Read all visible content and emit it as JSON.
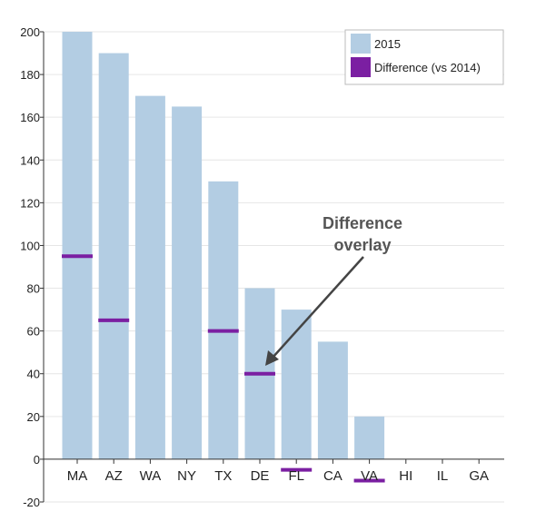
{
  "chart_data": {
    "type": "bar",
    "categories": [
      "MA",
      "AZ",
      "WA",
      "NY",
      "TX",
      "DE",
      "FL",
      "CA",
      "VA",
      "HI",
      "IL",
      "GA"
    ],
    "series": [
      {
        "name": "2015",
        "values": [
          200,
          190,
          170,
          165,
          130,
          80,
          70,
          55,
          20,
          0,
          0,
          0
        ],
        "color": "#b3cde3"
      },
      {
        "name": "Difference (vs 2014)",
        "values": [
          95,
          65,
          null,
          null,
          60,
          40,
          -5,
          null,
          -10,
          null,
          null,
          null
        ],
        "color": "#7b1fa2",
        "mark": "tick"
      }
    ],
    "ylim": [
      -20,
      200
    ],
    "yticks": [
      -20,
      0,
      20,
      40,
      60,
      80,
      100,
      120,
      140,
      160,
      180,
      200
    ],
    "grid": true,
    "legend_position": "top-right",
    "annotation": {
      "lines": [
        "Difference",
        "overlay"
      ],
      "points_to_category": "DE"
    }
  }
}
